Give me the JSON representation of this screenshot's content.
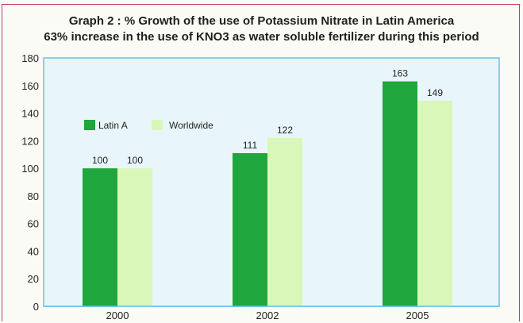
{
  "chart_data": {
    "type": "bar",
    "title": "Graph 2 : % Growth of the use of Potassium Nitrate in Latin America",
    "subtitle": "63% increase in the use of KNO3 as water soluble fertilizer during this period",
    "categories": [
      "2000",
      "2002",
      "2005"
    ],
    "series": [
      {
        "name": "Latin A",
        "values": [
          100,
          111,
          163
        ],
        "color": "#1fa63c"
      },
      {
        "name": "Worldwide",
        "values": [
          100,
          122,
          149
        ],
        "color": "#d9f7b8"
      }
    ],
    "ylim": [
      0,
      180
    ],
    "yticks": [
      "0",
      "20",
      "40",
      "60",
      "80",
      "100",
      "120",
      "140",
      "160",
      "180"
    ],
    "grid": false,
    "legend_position": "top-left",
    "plot_background": "#e8f6fb",
    "axis_color": "#6cc1e6"
  }
}
